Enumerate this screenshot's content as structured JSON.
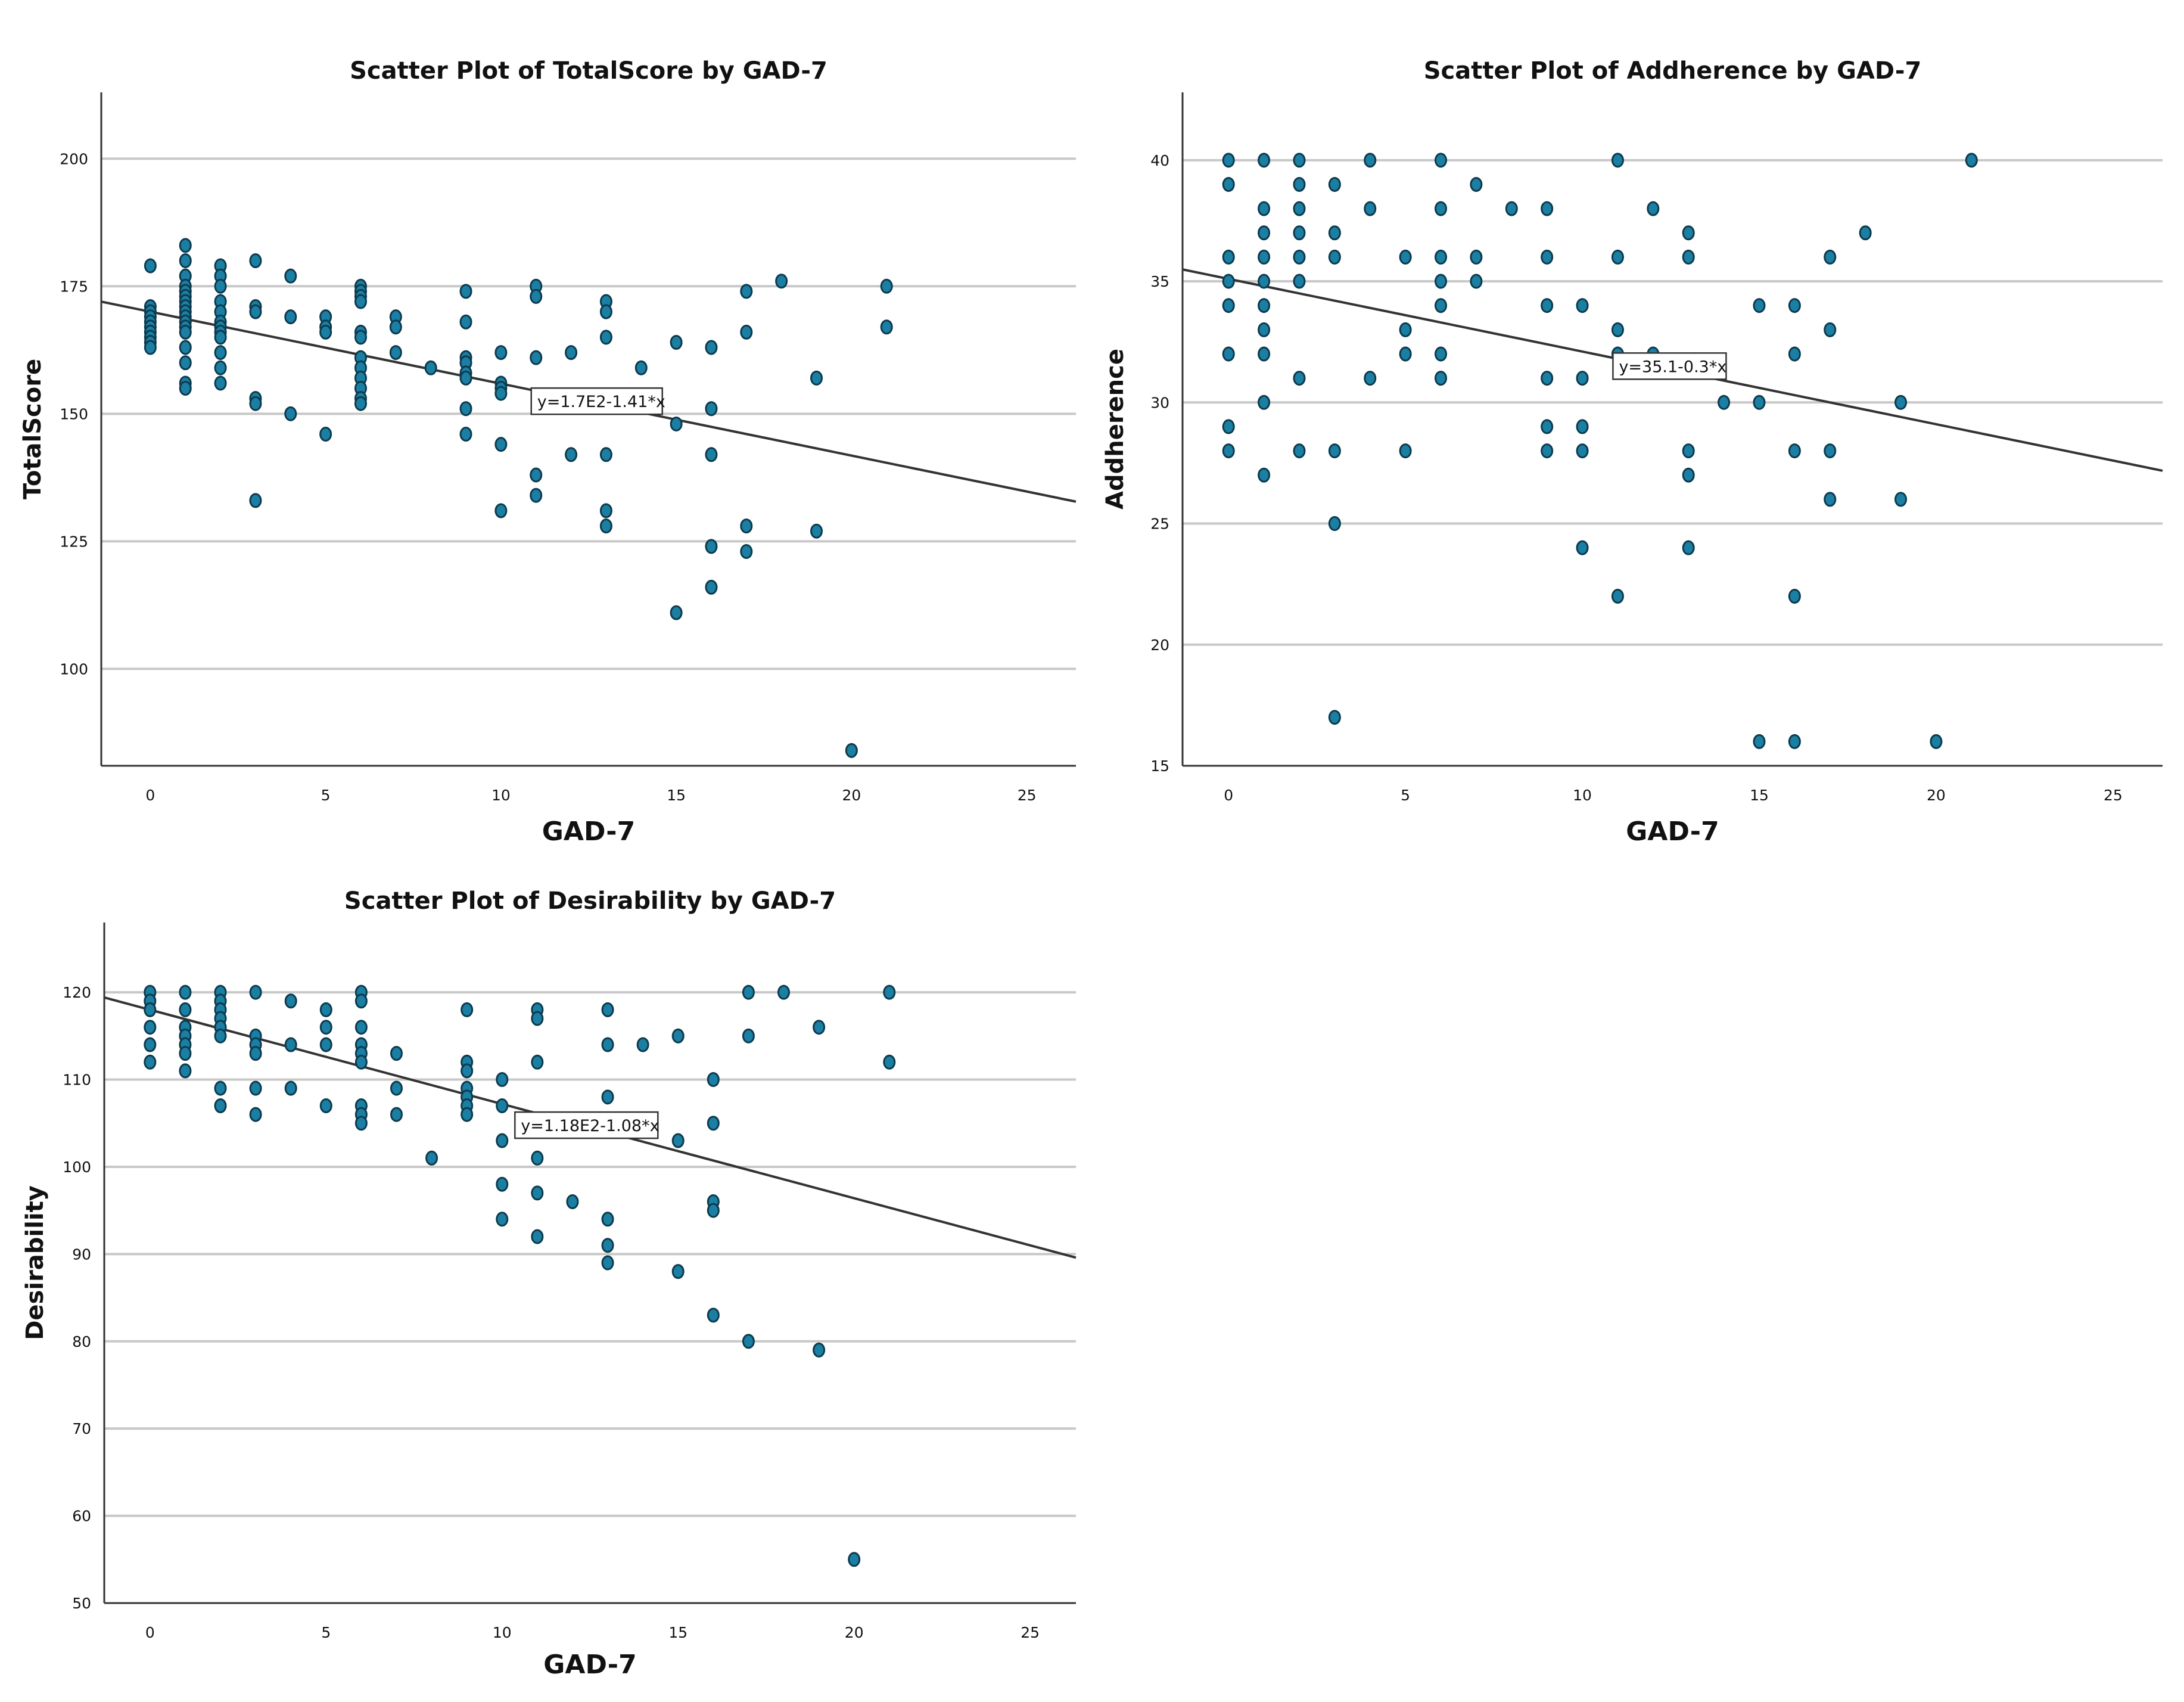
{
  "chart_data": [
    {
      "type": "scatter",
      "title": "Scatter Plot of TotalScore by GAD-7",
      "xlabel": "GAD-7",
      "ylabel": "TotalScore",
      "xlim": [
        -1.4,
        26.4
      ],
      "ylim": [
        81,
        213
      ],
      "xticks": [
        0,
        5,
        10,
        15,
        20,
        25
      ],
      "yticks": [
        100,
        125,
        150,
        175,
        200
      ],
      "grid": "horizontal",
      "fit_line": {
        "intercept": 170,
        "slope": -1.41,
        "label": "y=1.7E2-1.41*x",
        "label_anchor": [
          11,
          152
        ]
      },
      "points": [
        [
          0,
          179
        ],
        [
          0,
          171
        ],
        [
          0,
          170
        ],
        [
          0,
          169
        ],
        [
          0,
          168
        ],
        [
          0,
          167
        ],
        [
          0,
          166
        ],
        [
          0,
          165
        ],
        [
          0,
          164
        ],
        [
          0,
          163
        ],
        [
          1,
          183
        ],
        [
          1,
          180
        ],
        [
          1,
          177
        ],
        [
          1,
          175
        ],
        [
          1,
          174
        ],
        [
          1,
          173
        ],
        [
          1,
          172
        ],
        [
          1,
          171
        ],
        [
          1,
          170
        ],
        [
          1,
          169
        ],
        [
          1,
          168
        ],
        [
          1,
          167
        ],
        [
          1,
          166
        ],
        [
          1,
          163
        ],
        [
          1,
          160
        ],
        [
          1,
          156
        ],
        [
          1,
          155
        ],
        [
          2,
          179
        ],
        [
          2,
          177
        ],
        [
          2,
          175
        ],
        [
          2,
          172
        ],
        [
          2,
          170
        ],
        [
          2,
          168
        ],
        [
          2,
          167
        ],
        [
          2,
          166
        ],
        [
          2,
          165
        ],
        [
          2,
          162
        ],
        [
          2,
          159
        ],
        [
          2,
          156
        ],
        [
          3,
          180
        ],
        [
          3,
          171
        ],
        [
          3,
          170
        ],
        [
          3,
          153
        ],
        [
          3,
          152
        ],
        [
          3,
          133
        ],
        [
          4,
          177
        ],
        [
          4,
          169
        ],
        [
          4,
          150
        ],
        [
          5,
          169
        ],
        [
          5,
          167
        ],
        [
          5,
          166
        ],
        [
          5,
          146
        ],
        [
          6,
          175
        ],
        [
          6,
          174
        ],
        [
          6,
          173
        ],
        [
          6,
          172
        ],
        [
          6,
          166
        ],
        [
          6,
          165
        ],
        [
          6,
          161
        ],
        [
          6,
          159
        ],
        [
          6,
          157
        ],
        [
          6,
          155
        ],
        [
          6,
          153
        ],
        [
          6,
          152
        ],
        [
          7,
          169
        ],
        [
          7,
          167
        ],
        [
          7,
          162
        ],
        [
          8,
          159
        ],
        [
          9,
          174
        ],
        [
          9,
          168
        ],
        [
          9,
          161
        ],
        [
          9,
          160
        ],
        [
          9,
          158
        ],
        [
          9,
          157
        ],
        [
          9,
          151
        ],
        [
          9,
          146
        ],
        [
          10,
          162
        ],
        [
          10,
          156
        ],
        [
          10,
          155
        ],
        [
          10,
          154
        ],
        [
          10,
          144
        ],
        [
          10,
          131
        ],
        [
          11,
          175
        ],
        [
          11,
          173
        ],
        [
          11,
          161
        ],
        [
          11,
          138
        ],
        [
          11,
          134
        ],
        [
          12,
          162
        ],
        [
          12,
          142
        ],
        [
          13,
          172
        ],
        [
          13,
          170
        ],
        [
          13,
          165
        ],
        [
          13,
          142
        ],
        [
          13,
          131
        ],
        [
          13,
          128
        ],
        [
          14,
          159
        ],
        [
          15,
          164
        ],
        [
          15,
          148
        ],
        [
          15,
          111
        ],
        [
          16,
          163
        ],
        [
          16,
          151
        ],
        [
          16,
          142
        ],
        [
          16,
          124
        ],
        [
          16,
          116
        ],
        [
          17,
          174
        ],
        [
          17,
          166
        ],
        [
          17,
          128
        ],
        [
          17,
          123
        ],
        [
          18,
          176
        ],
        [
          19,
          157
        ],
        [
          19,
          127
        ],
        [
          20,
          84
        ],
        [
          21,
          175
        ],
        [
          21,
          167
        ]
      ]
    },
    {
      "type": "scatter",
      "title": "Scatter Plot of Addherence by GAD-7",
      "xlabel": "GAD-7",
      "ylabel": "Addherence",
      "xlim": [
        -1.3,
        26.4
      ],
      "ylim": [
        15,
        42.8
      ],
      "xticks": [
        0,
        5,
        10,
        15,
        20,
        25
      ],
      "yticks": [
        15,
        20,
        25,
        30,
        35,
        40
      ],
      "grid": "horizontal",
      "fit_line": {
        "intercept": 35.1,
        "slope": -0.3,
        "label": "y=35.1-0.3*x",
        "label_anchor": [
          11,
          31.4
        ]
      },
      "points": [
        [
          0,
          40
        ],
        [
          0,
          39
        ],
        [
          0,
          36
        ],
        [
          0,
          35
        ],
        [
          0,
          34
        ],
        [
          0,
          32
        ],
        [
          0,
          29
        ],
        [
          0,
          28
        ],
        [
          1,
          40
        ],
        [
          1,
          38
        ],
        [
          1,
          37
        ],
        [
          1,
          36
        ],
        [
          1,
          35
        ],
        [
          1,
          34
        ],
        [
          1,
          33
        ],
        [
          1,
          32
        ],
        [
          1,
          30
        ],
        [
          1,
          27
        ],
        [
          2,
          40
        ],
        [
          2,
          39
        ],
        [
          2,
          38
        ],
        [
          2,
          37
        ],
        [
          2,
          36
        ],
        [
          2,
          35
        ],
        [
          2,
          31
        ],
        [
          2,
          28
        ],
        [
          3,
          39
        ],
        [
          3,
          37
        ],
        [
          3,
          36
        ],
        [
          3,
          28
        ],
        [
          3,
          25
        ],
        [
          3,
          17
        ],
        [
          4,
          40
        ],
        [
          4,
          38
        ],
        [
          4,
          31
        ],
        [
          5,
          36
        ],
        [
          5,
          33
        ],
        [
          5,
          32
        ],
        [
          5,
          28
        ],
        [
          6,
          40
        ],
        [
          6,
          38
        ],
        [
          6,
          36
        ],
        [
          6,
          35
        ],
        [
          6,
          34
        ],
        [
          6,
          32
        ],
        [
          6,
          31
        ],
        [
          7,
          39
        ],
        [
          7,
          36
        ],
        [
          7,
          35
        ],
        [
          8,
          38
        ],
        [
          9,
          38
        ],
        [
          9,
          36
        ],
        [
          9,
          34
        ],
        [
          9,
          31
        ],
        [
          9,
          29
        ],
        [
          9,
          28
        ],
        [
          10,
          34
        ],
        [
          10,
          31
        ],
        [
          10,
          29
        ],
        [
          10,
          28
        ],
        [
          10,
          24
        ],
        [
          11,
          40
        ],
        [
          11,
          36
        ],
        [
          11,
          33
        ],
        [
          11,
          32
        ],
        [
          11,
          22
        ],
        [
          12,
          38
        ],
        [
          12,
          32
        ],
        [
          13,
          37
        ],
        [
          13,
          36
        ],
        [
          13,
          28
        ],
        [
          13,
          27
        ],
        [
          13,
          24
        ],
        [
          14,
          30
        ],
        [
          15,
          34
        ],
        [
          15,
          30
        ],
        [
          15,
          16
        ],
        [
          16,
          34
        ],
        [
          16,
          32
        ],
        [
          16,
          28
        ],
        [
          16,
          22
        ],
        [
          16,
          16
        ],
        [
          17,
          36
        ],
        [
          17,
          33
        ],
        [
          17,
          28
        ],
        [
          17,
          26
        ],
        [
          18,
          37
        ],
        [
          19,
          30
        ],
        [
          19,
          26
        ],
        [
          20,
          16
        ],
        [
          21,
          40
        ]
      ]
    },
    {
      "type": "scatter",
      "title": "Scatter Plot of Desirability by GAD-7",
      "xlabel": "GAD-7",
      "ylabel": "Desirability",
      "xlim": [
        -1.3,
        26.3
      ],
      "ylim": [
        50,
        128
      ],
      "xticks": [
        0,
        5,
        10,
        15,
        20,
        25
      ],
      "yticks": [
        50,
        60,
        70,
        80,
        90,
        100,
        110,
        120
      ],
      "grid": "horizontal",
      "fit_line": {
        "intercept": 118,
        "slope": -1.08,
        "label": "y=1.18E2-1.08*x",
        "label_anchor": [
          10.5,
          104.5
        ]
      },
      "points": [
        [
          0,
          120
        ],
        [
          0,
          119
        ],
        [
          0,
          118
        ],
        [
          0,
          116
        ],
        [
          0,
          114
        ],
        [
          0,
          112
        ],
        [
          1,
          120
        ],
        [
          1,
          118
        ],
        [
          1,
          116
        ],
        [
          1,
          115
        ],
        [
          1,
          114
        ],
        [
          1,
          113
        ],
        [
          1,
          111
        ],
        [
          2,
          120
        ],
        [
          2,
          119
        ],
        [
          2,
          118
        ],
        [
          2,
          117
        ],
        [
          2,
          116
        ],
        [
          2,
          115
        ],
        [
          2,
          109
        ],
        [
          2,
          107
        ],
        [
          3,
          120
        ],
        [
          3,
          115
        ],
        [
          3,
          114
        ],
        [
          3,
          113
        ],
        [
          3,
          109
        ],
        [
          3,
          106
        ],
        [
          4,
          119
        ],
        [
          4,
          114
        ],
        [
          4,
          109
        ],
        [
          5,
          118
        ],
        [
          5,
          116
        ],
        [
          5,
          114
        ],
        [
          5,
          107
        ],
        [
          6,
          120
        ],
        [
          6,
          119
        ],
        [
          6,
          116
        ],
        [
          6,
          114
        ],
        [
          6,
          113
        ],
        [
          6,
          112
        ],
        [
          6,
          107
        ],
        [
          6,
          106
        ],
        [
          6,
          105
        ],
        [
          7,
          113
        ],
        [
          7,
          109
        ],
        [
          7,
          106
        ],
        [
          8,
          101
        ],
        [
          9,
          118
        ],
        [
          9,
          112
        ],
        [
          9,
          111
        ],
        [
          9,
          109
        ],
        [
          9,
          108
        ],
        [
          9,
          107
        ],
        [
          9,
          106
        ],
        [
          10,
          110
        ],
        [
          10,
          107
        ],
        [
          10,
          103
        ],
        [
          10,
          98
        ],
        [
          10,
          94
        ],
        [
          11,
          118
        ],
        [
          11,
          117
        ],
        [
          11,
          112
        ],
        [
          11,
          101
        ],
        [
          11,
          97
        ],
        [
          11,
          92
        ],
        [
          12,
          96
        ],
        [
          13,
          118
        ],
        [
          13,
          114
        ],
        [
          13,
          108
        ],
        [
          13,
          94
        ],
        [
          13,
          91
        ],
        [
          13,
          89
        ],
        [
          14,
          114
        ],
        [
          15,
          115
        ],
        [
          15,
          103
        ],
        [
          15,
          88
        ],
        [
          16,
          110
        ],
        [
          16,
          105
        ],
        [
          16,
          96
        ],
        [
          16,
          95
        ],
        [
          16,
          83
        ],
        [
          17,
          120
        ],
        [
          17,
          115
        ],
        [
          17,
          80
        ],
        [
          18,
          120
        ],
        [
          19,
          116
        ],
        [
          19,
          79
        ],
        [
          20,
          55
        ],
        [
          21,
          120
        ],
        [
          21,
          112
        ]
      ]
    }
  ]
}
